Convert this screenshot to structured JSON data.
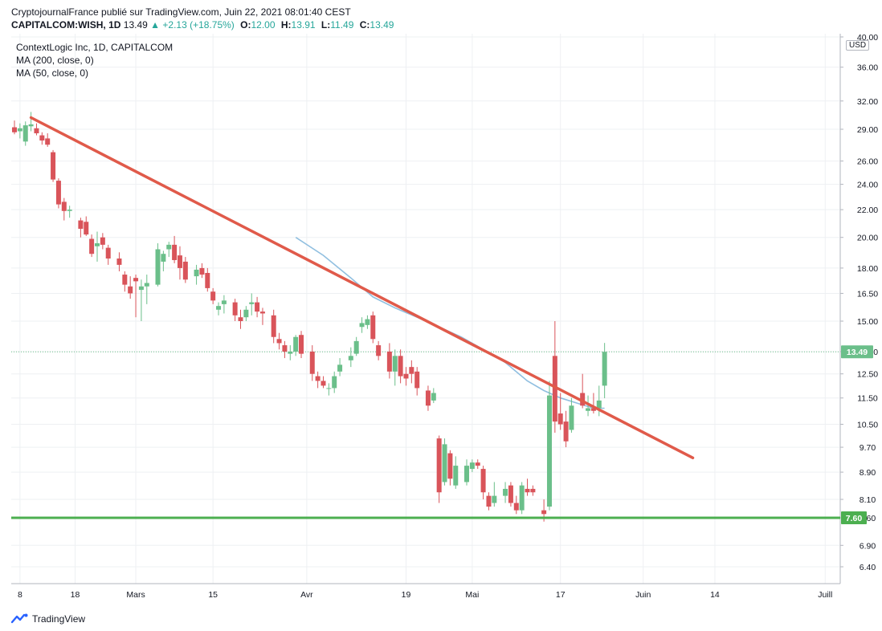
{
  "header": {
    "line1": "CryptojournalFrance publié sur TradingView.com, Juin 22, 2021 08:01:40 CEST",
    "symbol": "CAPITALCOM:WISH, 1D",
    "last": "13.49",
    "change": "+2.13 (+18.75%)",
    "o_label": "O:",
    "o_value": "12.00",
    "h_label": "H:",
    "h_value": "13.91",
    "l_label": "L:",
    "l_value": "11.49",
    "c_label": "C:",
    "c_value": "13.49"
  },
  "legend": {
    "line1": "ContextLogic Inc, 1D, CAPITALCOM",
    "line2": "MA (200, close, 0)",
    "line3": "MA (50, close, 0)"
  },
  "branding": "TradingView",
  "currency": "USD",
  "chart_data": {
    "type": "candlestick",
    "price_axis": {
      "scale": "log",
      "ticks": [
        "40.00",
        "36.00",
        "32.00",
        "29.00",
        "26.00",
        "24.00",
        "22.00",
        "20.00",
        "18.00",
        "16.50",
        "15.00",
        "13.50",
        "12.50",
        "11.50",
        "10.50",
        "9.70",
        "8.90",
        "8.10",
        "7.60",
        "6.90",
        "6.40"
      ],
      "range": [
        6.1,
        40.5
      ]
    },
    "time_axis": {
      "labels": [
        {
          "text": "8",
          "day": 0
        },
        {
          "text": "18",
          "day": 10
        },
        {
          "text": "Mars",
          "day": 21
        },
        {
          "text": "15",
          "day": 35
        },
        {
          "text": "Avr",
          "day": 52
        },
        {
          "text": "19",
          "day": 70
        },
        {
          "text": "Mai",
          "day": 82
        },
        {
          "text": "17",
          "day": 98
        },
        {
          "text": "Juin",
          "day": 113
        },
        {
          "text": "14",
          "day": 126
        },
        {
          "text": "Juill",
          "day": 146
        }
      ],
      "range": [
        -1,
        148
      ]
    },
    "candles": [
      {
        "d": -1,
        "o": 29.2,
        "h": 29.9,
        "l": 28.5,
        "c": 28.7
      },
      {
        "d": 0,
        "o": 28.8,
        "h": 29.6,
        "l": 28.1,
        "c": 29.1
      },
      {
        "d": 1,
        "o": 27.8,
        "h": 29.8,
        "l": 27.4,
        "c": 29.4
      },
      {
        "d": 2,
        "o": 29.3,
        "h": 30.8,
        "l": 28.8,
        "c": 29.5
      },
      {
        "d": 3,
        "o": 29.1,
        "h": 29.6,
        "l": 28.4,
        "c": 28.6
      },
      {
        "d": 4,
        "o": 28.4,
        "h": 28.7,
        "l": 27.5,
        "c": 27.9
      },
      {
        "d": 5,
        "o": 28.1,
        "h": 28.6,
        "l": 27.3,
        "c": 27.5
      },
      {
        "d": 6,
        "o": 26.8,
        "h": 27.0,
        "l": 24.2,
        "c": 24.4
      },
      {
        "d": 7,
        "o": 24.3,
        "h": 24.5,
        "l": 22.1,
        "c": 22.4
      },
      {
        "d": 8,
        "o": 22.6,
        "h": 22.9,
        "l": 21.2,
        "c": 21.9
      },
      {
        "d": 9,
        "o": 21.9,
        "h": 22.3,
        "l": 21.4,
        "c": 22.0
      },
      {
        "d": 11,
        "o": 21.2,
        "h": 21.4,
        "l": 20.0,
        "c": 20.6
      },
      {
        "d": 12,
        "o": 21.1,
        "h": 21.5,
        "l": 20.1,
        "c": 20.2
      },
      {
        "d": 13,
        "o": 19.9,
        "h": 20.2,
        "l": 18.7,
        "c": 18.9
      },
      {
        "d": 14,
        "o": 19.4,
        "h": 20.4,
        "l": 18.4,
        "c": 19.6
      },
      {
        "d": 15,
        "o": 20.0,
        "h": 20.3,
        "l": 19.2,
        "c": 19.5
      },
      {
        "d": 16,
        "o": 19.3,
        "h": 19.5,
        "l": 18.2,
        "c": 18.6
      },
      {
        "d": 18,
        "o": 18.6,
        "h": 19.0,
        "l": 17.8,
        "c": 18.2
      },
      {
        "d": 19,
        "o": 17.6,
        "h": 17.8,
        "l": 16.6,
        "c": 17.0
      },
      {
        "d": 20,
        "o": 16.9,
        "h": 17.5,
        "l": 16.2,
        "c": 16.5
      },
      {
        "d": 21,
        "o": 17.4,
        "h": 17.6,
        "l": 15.2,
        "c": 17.2
      },
      {
        "d": 22,
        "o": 16.7,
        "h": 17.3,
        "l": 15.0,
        "c": 16.9
      },
      {
        "d": 23,
        "o": 16.9,
        "h": 17.6,
        "l": 15.9,
        "c": 17.1
      },
      {
        "d": 25,
        "o": 17.0,
        "h": 19.6,
        "l": 16.9,
        "c": 19.2
      },
      {
        "d": 26,
        "o": 18.4,
        "h": 19.1,
        "l": 17.8,
        "c": 18.9
      },
      {
        "d": 27,
        "o": 19.2,
        "h": 19.7,
        "l": 18.7,
        "c": 19.5
      },
      {
        "d": 28,
        "o": 19.5,
        "h": 20.1,
        "l": 18.3,
        "c": 18.5
      },
      {
        "d": 29,
        "o": 18.8,
        "h": 19.4,
        "l": 17.3,
        "c": 18.0
      },
      {
        "d": 30,
        "o": 18.4,
        "h": 18.7,
        "l": 17.1,
        "c": 17.3
      },
      {
        "d": 32,
        "o": 17.5,
        "h": 18.2,
        "l": 17.0,
        "c": 17.9
      },
      {
        "d": 33,
        "o": 18.0,
        "h": 18.3,
        "l": 17.4,
        "c": 17.6
      },
      {
        "d": 34,
        "o": 17.7,
        "h": 18.0,
        "l": 16.6,
        "c": 16.8
      },
      {
        "d": 35,
        "o": 16.6,
        "h": 16.8,
        "l": 15.9,
        "c": 16.1
      },
      {
        "d": 36,
        "o": 15.6,
        "h": 16.0,
        "l": 15.3,
        "c": 15.8
      },
      {
        "d": 37,
        "o": 15.9,
        "h": 16.4,
        "l": 15.4,
        "c": 16.1
      },
      {
        "d": 39,
        "o": 16.0,
        "h": 16.2,
        "l": 15.0,
        "c": 15.3
      },
      {
        "d": 40,
        "o": 15.2,
        "h": 15.6,
        "l": 14.6,
        "c": 15.0
      },
      {
        "d": 41,
        "o": 15.2,
        "h": 15.8,
        "l": 15.0,
        "c": 15.6
      },
      {
        "d": 42,
        "o": 15.9,
        "h": 16.5,
        "l": 15.3,
        "c": 16.0
      },
      {
        "d": 43,
        "o": 16.0,
        "h": 16.3,
        "l": 15.2,
        "c": 15.5
      },
      {
        "d": 44,
        "o": 15.5,
        "h": 15.7,
        "l": 14.8,
        "c": 15.4
      },
      {
        "d": 46,
        "o": 15.3,
        "h": 15.6,
        "l": 13.9,
        "c": 14.2
      },
      {
        "d": 47,
        "o": 14.1,
        "h": 14.4,
        "l": 13.6,
        "c": 13.9
      },
      {
        "d": 48,
        "o": 13.8,
        "h": 14.0,
        "l": 13.2,
        "c": 13.5
      },
      {
        "d": 49,
        "o": 13.4,
        "h": 13.8,
        "l": 13.1,
        "c": 13.5
      },
      {
        "d": 50,
        "o": 13.5,
        "h": 14.3,
        "l": 13.3,
        "c": 14.2
      },
      {
        "d": 51,
        "o": 14.3,
        "h": 14.5,
        "l": 13.2,
        "c": 13.4
      },
      {
        "d": 53,
        "o": 13.5,
        "h": 13.8,
        "l": 12.2,
        "c": 12.5
      },
      {
        "d": 54,
        "o": 12.4,
        "h": 12.6,
        "l": 11.9,
        "c": 12.2
      },
      {
        "d": 55,
        "o": 12.2,
        "h": 12.4,
        "l": 11.9,
        "c": 12.0
      },
      {
        "d": 56,
        "o": 11.9,
        "h": 12.1,
        "l": 11.6,
        "c": 11.9
      },
      {
        "d": 57,
        "o": 11.9,
        "h": 12.6,
        "l": 11.7,
        "c": 12.4
      },
      {
        "d": 58,
        "o": 12.6,
        "h": 13.2,
        "l": 12.4,
        "c": 12.9
      },
      {
        "d": 60,
        "o": 13.1,
        "h": 13.7,
        "l": 12.8,
        "c": 13.3
      },
      {
        "d": 61,
        "o": 13.4,
        "h": 14.2,
        "l": 13.3,
        "c": 14.0
      },
      {
        "d": 62,
        "o": 14.7,
        "h": 15.2,
        "l": 14.4,
        "c": 14.9
      },
      {
        "d": 63,
        "o": 14.8,
        "h": 15.3,
        "l": 14.6,
        "c": 15.1
      },
      {
        "d": 64,
        "o": 15.3,
        "h": 15.5,
        "l": 13.9,
        "c": 14.1
      },
      {
        "d": 65,
        "o": 13.8,
        "h": 14.0,
        "l": 13.1,
        "c": 13.3
      },
      {
        "d": 67,
        "o": 13.5,
        "h": 13.9,
        "l": 12.3,
        "c": 12.6
      },
      {
        "d": 68,
        "o": 12.6,
        "h": 13.6,
        "l": 12.0,
        "c": 13.3
      },
      {
        "d": 69,
        "o": 13.3,
        "h": 13.6,
        "l": 12.1,
        "c": 12.4
      },
      {
        "d": 70,
        "o": 12.5,
        "h": 12.8,
        "l": 12.0,
        "c": 12.3
      },
      {
        "d": 71,
        "o": 12.8,
        "h": 13.1,
        "l": 12.1,
        "c": 12.5
      },
      {
        "d": 72,
        "o": 12.6,
        "h": 12.8,
        "l": 11.6,
        "c": 11.9
      },
      {
        "d": 74,
        "o": 11.8,
        "h": 12.0,
        "l": 11.0,
        "c": 11.2
      },
      {
        "d": 75,
        "o": 11.4,
        "h": 11.9,
        "l": 11.3,
        "c": 11.7
      },
      {
        "d": 76,
        "o": 10.0,
        "h": 10.1,
        "l": 8.0,
        "c": 8.3
      },
      {
        "d": 77,
        "o": 8.6,
        "h": 10.0,
        "l": 8.5,
        "c": 9.8
      },
      {
        "d": 78,
        "o": 9.5,
        "h": 9.6,
        "l": 8.5,
        "c": 8.7
      },
      {
        "d": 79,
        "o": 8.5,
        "h": 9.4,
        "l": 8.4,
        "c": 9.1
      },
      {
        "d": 81,
        "o": 8.6,
        "h": 9.3,
        "l": 8.5,
        "c": 9.1
      },
      {
        "d": 82,
        "o": 9.0,
        "h": 9.3,
        "l": 8.9,
        "c": 9.2
      },
      {
        "d": 83,
        "o": 9.2,
        "h": 9.3,
        "l": 9.0,
        "c": 9.1
      },
      {
        "d": 84,
        "o": 9.0,
        "h": 9.1,
        "l": 8.1,
        "c": 8.3
      },
      {
        "d": 85,
        "o": 8.2,
        "h": 8.3,
        "l": 7.8,
        "c": 7.9
      },
      {
        "d": 86,
        "o": 8.0,
        "h": 8.6,
        "l": 7.9,
        "c": 8.2
      },
      {
        "d": 88,
        "o": 8.2,
        "h": 8.6,
        "l": 8.0,
        "c": 8.4
      },
      {
        "d": 89,
        "o": 8.5,
        "h": 8.6,
        "l": 7.9,
        "c": 8.0
      },
      {
        "d": 90,
        "o": 8.0,
        "h": 8.2,
        "l": 7.7,
        "c": 7.8
      },
      {
        "d": 91,
        "o": 7.8,
        "h": 8.6,
        "l": 7.7,
        "c": 8.5
      },
      {
        "d": 92,
        "o": 8.4,
        "h": 8.7,
        "l": 8.2,
        "c": 8.3
      },
      {
        "d": 93,
        "o": 8.4,
        "h": 8.5,
        "l": 8.2,
        "c": 8.3
      },
      {
        "d": 95,
        "o": 7.8,
        "h": 8.1,
        "l": 7.5,
        "c": 7.7
      },
      {
        "d": 96,
        "o": 7.9,
        "h": 12.2,
        "l": 7.8,
        "c": 11.6
      },
      {
        "d": 97,
        "o": 13.3,
        "h": 15.0,
        "l": 10.2,
        "c": 10.6
      },
      {
        "d": 98,
        "o": 10.9,
        "h": 11.7,
        "l": 10.3,
        "c": 10.5
      },
      {
        "d": 99,
        "o": 10.6,
        "h": 11.0,
        "l": 9.7,
        "c": 9.9
      },
      {
        "d": 100,
        "o": 10.3,
        "h": 11.5,
        "l": 10.2,
        "c": 11.2
      },
      {
        "d": 102,
        "o": 11.7,
        "h": 12.5,
        "l": 11.1,
        "c": 11.2
      },
      {
        "d": 103,
        "o": 11.0,
        "h": 11.6,
        "l": 10.8,
        "c": 11.1
      },
      {
        "d": 104,
        "o": 11.1,
        "h": 11.7,
        "l": 10.9,
        "c": 11.0
      },
      {
        "d": 105,
        "o": 11.1,
        "h": 12.0,
        "l": 10.8,
        "c": 11.4
      },
      {
        "d": 106,
        "o": 12.0,
        "h": 13.91,
        "l": 11.49,
        "c": 13.49
      }
    ],
    "ma50": {
      "label": "MA (50, close, 0)",
      "color": "#90bfe0",
      "points": [
        {
          "d": 50,
          "v": 20.0
        },
        {
          "d": 55,
          "v": 18.8
        },
        {
          "d": 60,
          "v": 17.4
        },
        {
          "d": 64,
          "v": 16.3
        },
        {
          "d": 68,
          "v": 15.7
        },
        {
          "d": 72,
          "v": 15.2
        },
        {
          "d": 76,
          "v": 14.7
        },
        {
          "d": 80,
          "v": 14.2
        },
        {
          "d": 84,
          "v": 13.6
        },
        {
          "d": 88,
          "v": 13.0
        },
        {
          "d": 92,
          "v": 12.2
        },
        {
          "d": 95,
          "v": 11.8
        },
        {
          "d": 98,
          "v": 11.5
        },
        {
          "d": 101,
          "v": 11.3
        },
        {
          "d": 104,
          "v": 11.1
        },
        {
          "d": 106,
          "v": 11.1
        }
      ]
    },
    "trendline": {
      "color": "#e05a4a",
      "from": {
        "d": 2,
        "v": 30.2
      },
      "to": {
        "d": 122,
        "v": 9.35
      }
    },
    "support": {
      "color": "#4caf50",
      "value": 7.6,
      "label": "7.60"
    },
    "last_price_label": "13.49",
    "colors": {
      "up": "#6bbf8a",
      "down": "#d9545a",
      "grid": "#eef0f3",
      "axis": "#b2b5be"
    },
    "grid": true
  }
}
